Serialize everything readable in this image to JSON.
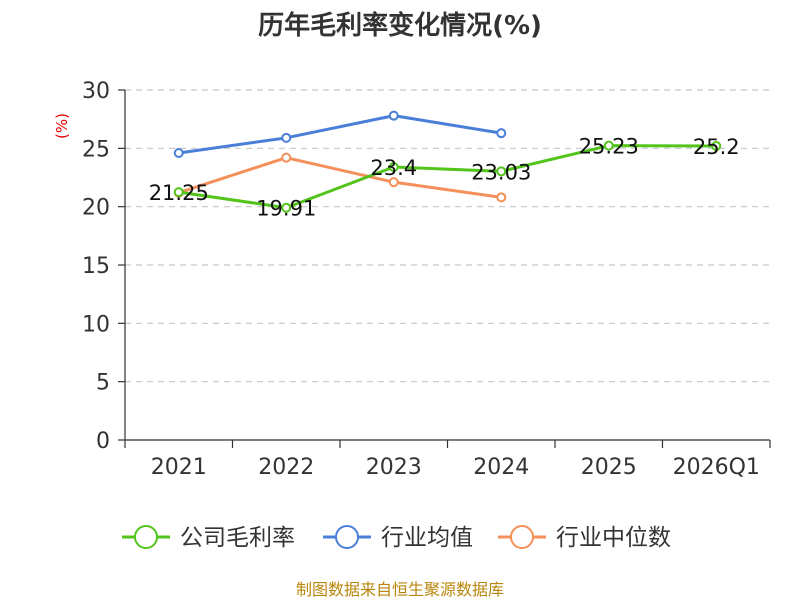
{
  "chart_data": {
    "type": "line",
    "title": "历年毛利率变化情况(%)",
    "ylabel": "(%)",
    "xlabel": "",
    "categories": [
      "2021",
      "2022",
      "2023",
      "2024",
      "2025",
      "2026Q1"
    ],
    "ylim": [
      0,
      30
    ],
    "yticks": [
      "0",
      "5",
      "10",
      "15",
      "20",
      "25",
      "30"
    ],
    "grid": true,
    "legend_position": "bottom",
    "series": [
      {
        "name": "公司毛利率",
        "color": "#52c41a",
        "values": [
          21.25,
          19.91,
          23.4,
          23.03,
          25.23,
          25.2
        ],
        "labels": [
          "21.25",
          "19.91",
          "23.4",
          "23.03",
          "25.23",
          "25.2"
        ]
      },
      {
        "name": "行业均值",
        "color": "#4a7fd9",
        "values": [
          24.6,
          25.9,
          27.8,
          26.3,
          null,
          null
        ]
      },
      {
        "name": "行业中位数",
        "color": "#f5905a",
        "values": [
          21.2,
          24.2,
          22.1,
          20.8,
          null,
          null
        ]
      }
    ]
  },
  "source": "制图数据来自恒生聚源数据库"
}
